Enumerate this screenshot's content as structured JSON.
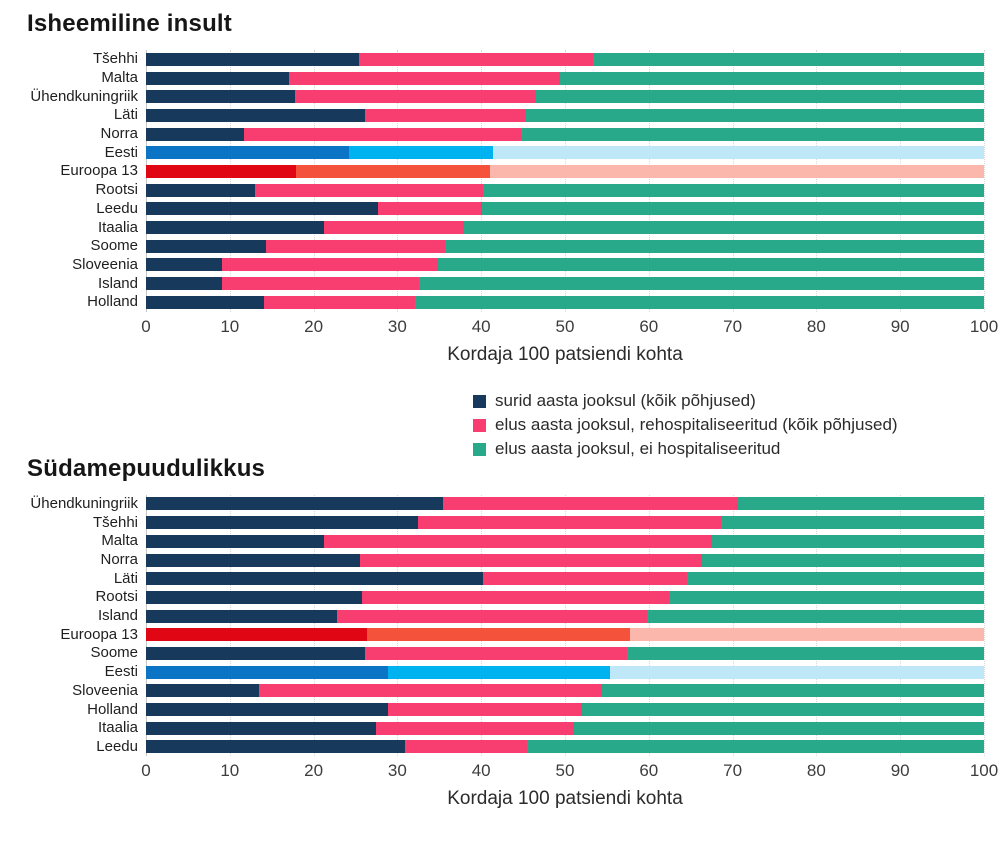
{
  "palettes": {
    "default": [
      "#17395C",
      "#F83E71",
      "#27A98A"
    ],
    "estonia": [
      "#0B74C5",
      "#00B3F0",
      "#BEE7F8"
    ],
    "europe": [
      "#E00613",
      "#F4523B",
      "#FBB7AB"
    ]
  },
  "legend": {
    "items": [
      {
        "label": "surid aasta jooksul (kõik põhjused)",
        "color": "#17395C"
      },
      {
        "label": "elus aasta jooksul, rehospitaliseeritud (kõik põhjused)",
        "color": "#F83E71"
      },
      {
        "label": "elus aasta jooksul, ei hospitaliseeritud",
        "color": "#27A98A"
      }
    ]
  },
  "chart_data": [
    {
      "type": "bar",
      "stacked": true,
      "orientation": "horizontal",
      "title": "Isheemiline insult",
      "xlabel": "Kordaja 100 patsiendi kohta",
      "xlim": [
        0,
        100
      ],
      "xticks": [
        0,
        10,
        20,
        30,
        40,
        50,
        60,
        70,
        80,
        90,
        100
      ],
      "grid": "dotted-vertical",
      "series_names": [
        "surid aasta jooksul (kõik põhjused)",
        "elus aasta jooksul, rehospitaliseeritud (kõik põhjused)",
        "elus aasta jooksul, ei hospitaliseeritud"
      ],
      "rows": [
        {
          "name": "Tšehhi",
          "values": [
            25.4,
            27.9,
            46.7
          ],
          "palette": "default"
        },
        {
          "name": "Malta",
          "values": [
            17.1,
            32.3,
            50.6
          ],
          "palette": "default"
        },
        {
          "name": "Ühendkuningriik",
          "values": [
            17.8,
            28.7,
            53.5
          ],
          "palette": "default"
        },
        {
          "name": "Läti",
          "values": [
            26.1,
            19.3,
            54.6
          ],
          "palette": "default"
        },
        {
          "name": "Norra",
          "values": [
            11.7,
            33.0,
            55.3
          ],
          "palette": "default"
        },
        {
          "name": "Eesti",
          "values": [
            24.2,
            17.2,
            58.6
          ],
          "palette": "estonia"
        },
        {
          "name": "Euroopa 13",
          "values": [
            17.9,
            23.1,
            59.0
          ],
          "palette": "europe"
        },
        {
          "name": "Rootsi",
          "values": [
            13.0,
            27.2,
            59.8
          ],
          "palette": "default"
        },
        {
          "name": "Leedu",
          "values": [
            27.7,
            12.4,
            59.9
          ],
          "palette": "default"
        },
        {
          "name": "Itaalia",
          "values": [
            21.3,
            16.7,
            62.0
          ],
          "palette": "default"
        },
        {
          "name": "Soome",
          "values": [
            14.3,
            21.4,
            64.3
          ],
          "palette": "default"
        },
        {
          "name": "Sloveenia",
          "values": [
            9.1,
            25.8,
            65.1
          ],
          "palette": "default"
        },
        {
          "name": "Island",
          "values": [
            9.1,
            23.5,
            67.4
          ],
          "palette": "default"
        },
        {
          "name": "Holland",
          "values": [
            14.1,
            18.0,
            67.9
          ],
          "palette": "default"
        }
      ]
    },
    {
      "type": "bar",
      "stacked": true,
      "orientation": "horizontal",
      "title": "Südamepuudulikkus",
      "xlabel": "Kordaja 100 patsiendi kohta",
      "xlim": [
        0,
        100
      ],
      "xticks": [
        0,
        10,
        20,
        30,
        40,
        50,
        60,
        70,
        80,
        90,
        100
      ],
      "grid": "dotted-vertical",
      "series_names": [
        "surid aasta jooksul (kõik põhjused)",
        "elus aasta jooksul, rehospitaliseeritud (kõik põhjused)",
        "elus aasta jooksul, ei hospitaliseeritud"
      ],
      "rows": [
        {
          "name": "Ühendkuningriik",
          "values": [
            35.5,
            35.1,
            29.4
          ],
          "palette": "default"
        },
        {
          "name": "Tšehhi",
          "values": [
            32.5,
            36.1,
            31.4
          ],
          "palette": "default"
        },
        {
          "name": "Malta",
          "values": [
            21.2,
            46.4,
            32.4
          ],
          "palette": "default"
        },
        {
          "name": "Norra",
          "values": [
            25.5,
            40.8,
            33.7
          ],
          "palette": "default"
        },
        {
          "name": "Läti",
          "values": [
            40.2,
            24.3,
            35.5
          ],
          "palette": "default"
        },
        {
          "name": "Rootsi",
          "values": [
            25.8,
            36.6,
            37.6
          ],
          "palette": "default"
        },
        {
          "name": "Island",
          "values": [
            22.8,
            37.0,
            40.2
          ],
          "palette": "default"
        },
        {
          "name": "Euroopa 13",
          "values": [
            26.4,
            31.4,
            42.2
          ],
          "palette": "europe"
        },
        {
          "name": "Soome",
          "values": [
            26.1,
            31.3,
            42.6
          ],
          "palette": "default"
        },
        {
          "name": "Eesti",
          "values": [
            28.9,
            26.5,
            44.6
          ],
          "palette": "estonia"
        },
        {
          "name": "Sloveenia",
          "values": [
            13.5,
            40.9,
            45.6
          ],
          "palette": "default"
        },
        {
          "name": "Holland",
          "values": [
            28.9,
            23.1,
            48.0
          ],
          "palette": "default"
        },
        {
          "name": "Itaalia",
          "values": [
            27.5,
            23.6,
            48.9
          ],
          "palette": "default"
        },
        {
          "name": "Leedu",
          "values": [
            30.9,
            14.6,
            54.5
          ],
          "palette": "default"
        }
      ]
    }
  ]
}
